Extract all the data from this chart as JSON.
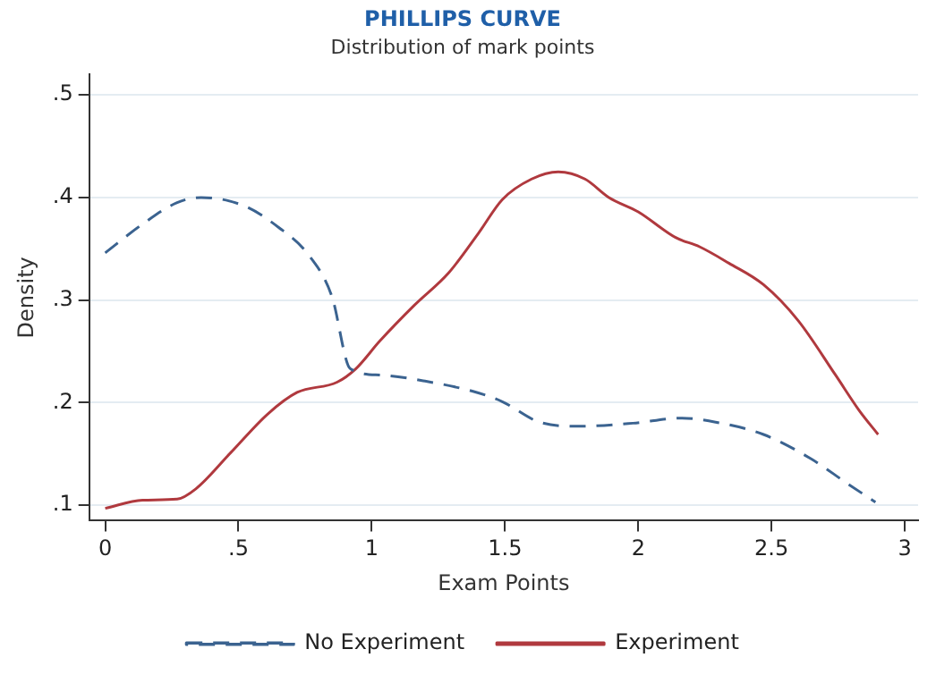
{
  "chart_data": {
    "type": "line",
    "title": "PHILLIPS CURVE",
    "subtitle": "Distribution of mark points",
    "xlabel": "Exam Points",
    "ylabel": "Density",
    "xlim": [
      -0.06,
      3.05
    ],
    "xticks": [
      0,
      {
        "value": 0.5,
        "label": ".5"
      },
      1,
      1.5,
      2,
      2.5,
      3
    ],
    "ylim": [
      0.085,
      0.52
    ],
    "yticks": [
      {
        "value": 0.1,
        "label": ".1"
      },
      {
        "value": 0.2,
        "label": ".2"
      },
      {
        "value": 0.3,
        "label": ".3"
      },
      {
        "value": 0.4,
        "label": ".4"
      },
      {
        "value": 0.5,
        "label": ".5"
      }
    ],
    "grid": "y",
    "legend": "bottom",
    "marker": "none",
    "series": [
      {
        "name": "No Experiment",
        "color": "#3b6390",
        "line_style": "dashed",
        "x": [
          0,
          0.14,
          0.27,
          0.36,
          0.52,
          0.65,
          0.76,
          0.85,
          0.92,
          1.03,
          1.2,
          1.38,
          1.49,
          1.63,
          1.78,
          1.98,
          2.16,
          2.29,
          2.47,
          2.65,
          2.78,
          2.89
        ],
        "values": [
          0.346,
          0.374,
          0.395,
          0.4,
          0.392,
          0.371,
          0.345,
          0.304,
          0.233,
          0.227,
          0.221,
          0.211,
          0.201,
          0.181,
          0.177,
          0.18,
          0.185,
          0.181,
          0.169,
          0.145,
          0.122,
          0.103
        ]
      },
      {
        "name": "Experiment",
        "color": "#b0393e",
        "line_style": "solid",
        "x": [
          0,
          0.14,
          0.27,
          0.34,
          0.47,
          0.61,
          0.72,
          0.87,
          0.94,
          1.03,
          1.16,
          1.29,
          1.4,
          1.49,
          1.6,
          1.7,
          1.8,
          1.89,
          2.0,
          2.14,
          2.23,
          2.34,
          2.47,
          2.6,
          2.74,
          2.83,
          2.9
        ],
        "values": [
          0.097,
          0.105,
          0.106,
          0.116,
          0.151,
          0.189,
          0.21,
          0.22,
          0.233,
          0.26,
          0.295,
          0.327,
          0.365,
          0.398,
          0.418,
          0.425,
          0.418,
          0.4,
          0.386,
          0.361,
          0.352,
          0.336,
          0.315,
          0.28,
          0.227,
          0.192,
          0.169
        ]
      }
    ]
  }
}
